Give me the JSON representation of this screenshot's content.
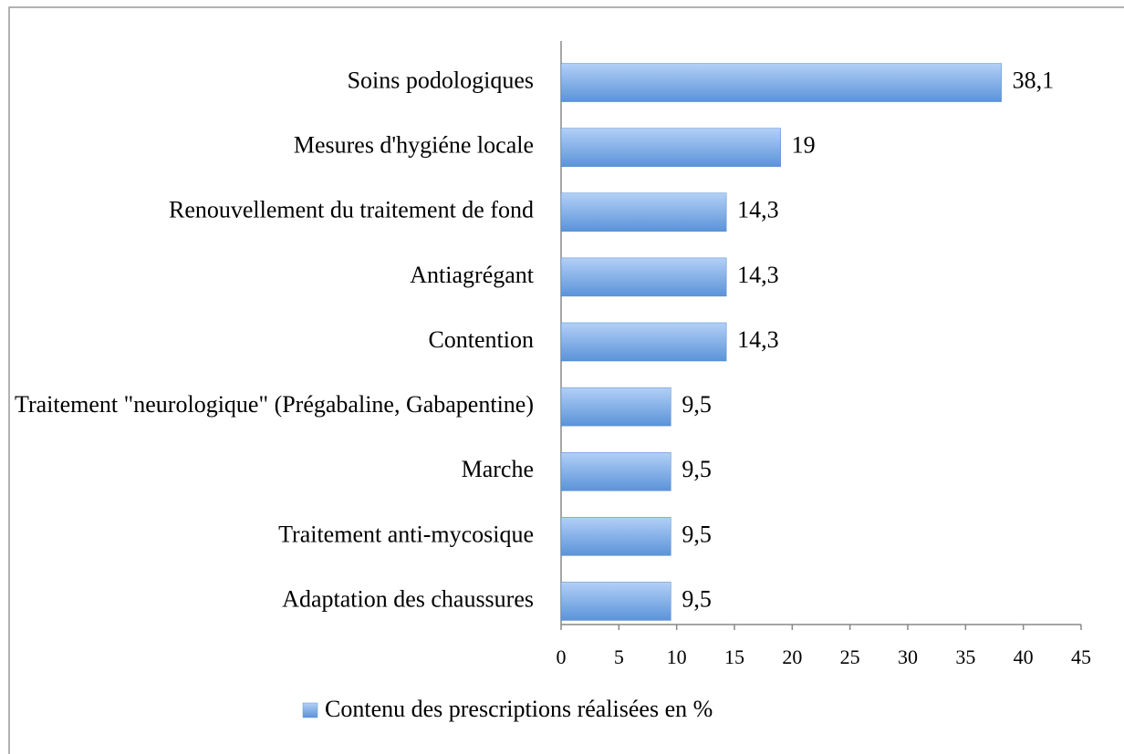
{
  "chart_data": {
    "type": "bar",
    "orientation": "horizontal",
    "categories": [
      "Soins podologiques",
      "Mesures d'hygiéne locale",
      "Renouvellement du traitement de fond",
      "Antiagrégant",
      "Contention",
      "Traitement \"neurologique\" (Prégabaline, Gabapentine)",
      "Marche",
      "Traitement anti-mycosique",
      "Adaptation des chaussures"
    ],
    "series": [
      {
        "name": "Contenu des prescriptions réalisées en %",
        "color": "#5b93d9",
        "values": [
          38.1,
          19,
          14.3,
          14.3,
          14.3,
          9.5,
          9.5,
          9.5,
          9.5
        ],
        "value_labels": [
          "38,1",
          "19",
          "14,3",
          "14,3",
          "14,3",
          "9,5",
          "9,5",
          "9,5",
          "9,5"
        ]
      }
    ],
    "xlim": [
      0,
      45
    ],
    "xticks": [
      0,
      5,
      10,
      15,
      20,
      25,
      30,
      35,
      40,
      45
    ],
    "legend": "bottom"
  }
}
